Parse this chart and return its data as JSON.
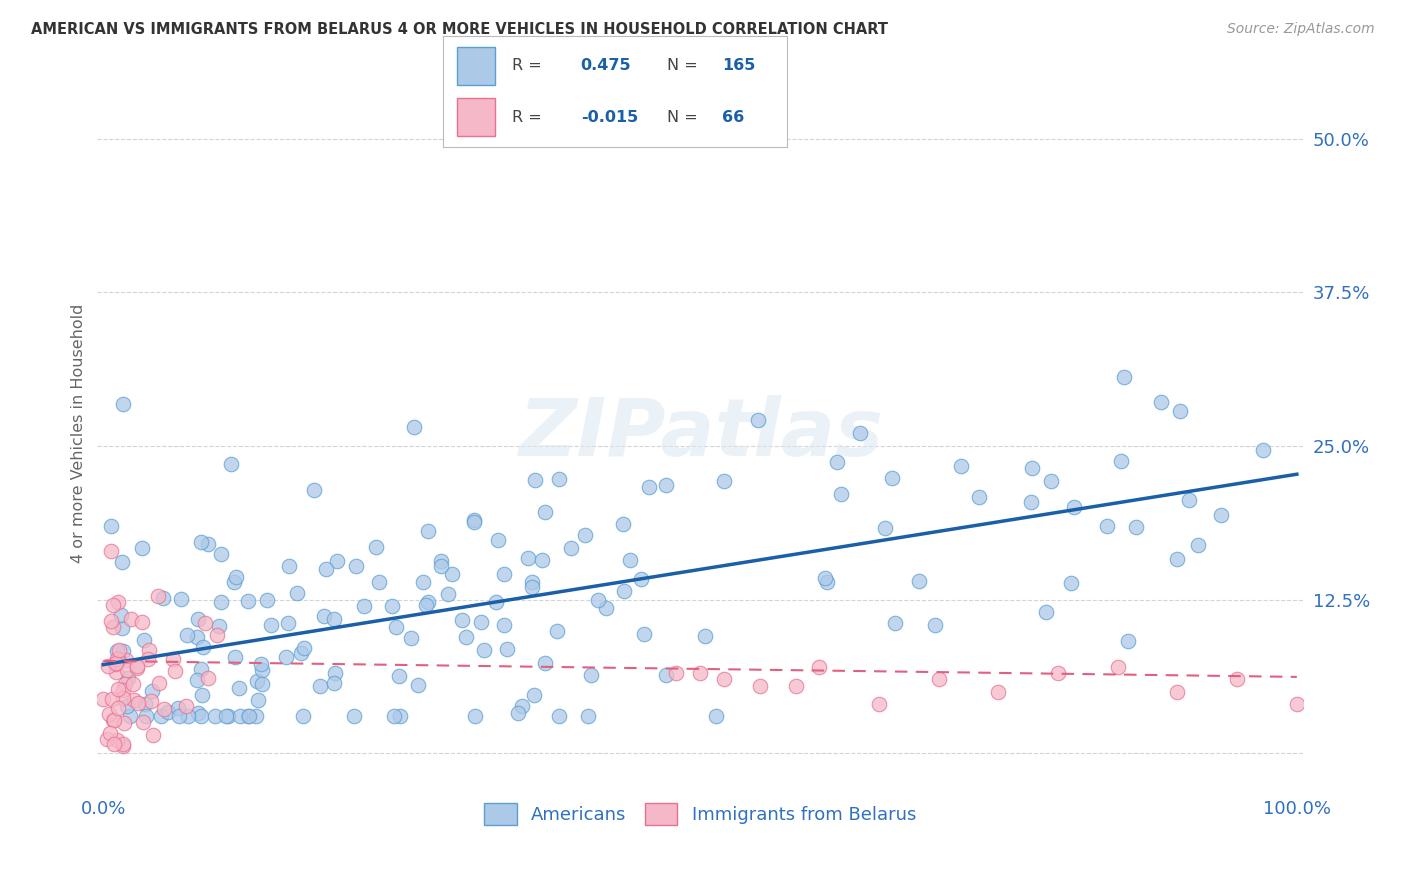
{
  "title": "AMERICAN VS IMMIGRANTS FROM BELARUS 4 OR MORE VEHICLES IN HOUSEHOLD CORRELATION CHART",
  "source": "Source: ZipAtlas.com",
  "ylabel_label": "4 or more Vehicles in Household",
  "xlim": [
    -0.005,
    1.005
  ],
  "ylim": [
    -0.03,
    0.55
  ],
  "xticks": [
    0.0,
    0.25,
    0.5,
    0.75,
    1.0
  ],
  "xticklabels": [
    "0.0%",
    "",
    "",
    "",
    "100.0%"
  ],
  "yticks": [
    0.0,
    0.125,
    0.25,
    0.375,
    0.5
  ],
  "yticklabels": [
    "",
    "12.5%",
    "25.0%",
    "37.5%",
    "50.0%"
  ],
  "R_american": 0.475,
  "N_american": 165,
  "R_belarus": -0.015,
  "N_belarus": 66,
  "color_american_face": "#adc9e8",
  "color_american_edge": "#5a9fd4",
  "color_belarus_face": "#f5b8c8",
  "color_belarus_edge": "#e87090",
  "color_american_line": "#1a5fa8",
  "color_belarus_line": "#e06080",
  "background_color": "#ffffff",
  "grid_color": "#d0d0d0",
  "watermark_text": "ZIPatlas",
  "legend_label_american": "Americans",
  "legend_label_belarus": "Immigrants from Belarus",
  "tick_color": "#3070c0",
  "title_color": "#333333",
  "source_color": "#999999",
  "ylabel_color": "#666666"
}
